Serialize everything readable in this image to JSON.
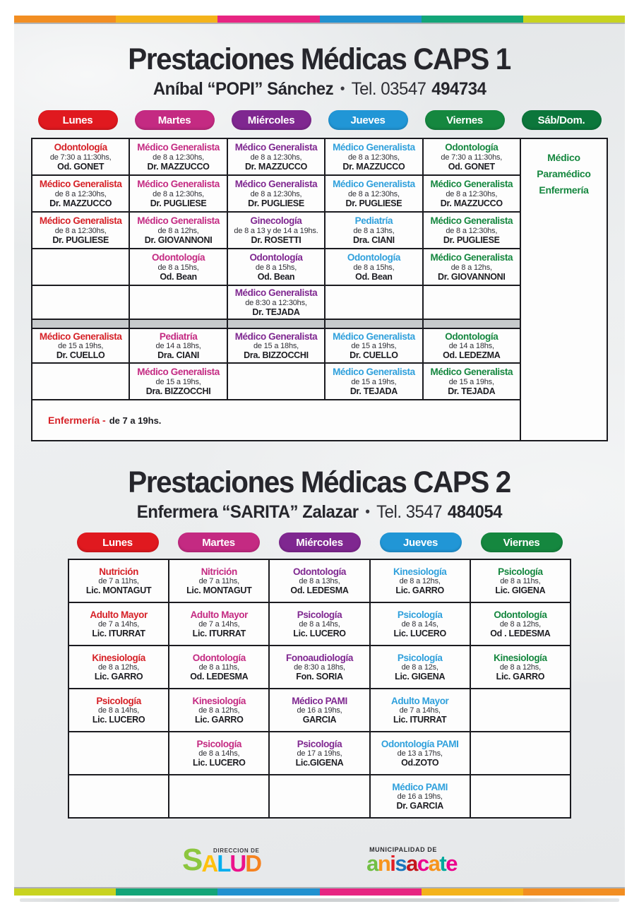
{
  "strips": {
    "top_colors": [
      "#F28E22",
      "#F4B31B",
      "#E72582",
      "#2191D0",
      "#13A578",
      "#C8D320"
    ],
    "bottom_colors": [
      "#C8D320",
      "#13A578",
      "#2191D0",
      "#E72582",
      "#F4B31B",
      "#F28E22"
    ]
  },
  "caps1": {
    "title": "Prestaciones Médicas CAPS 1",
    "subtitle": {
      "name": "Aníbal “POPI” Sánchez",
      "bullet": "•",
      "tel_normal": "Tel. 03547",
      "tel_bold": "494734"
    },
    "days": [
      {
        "label": "Lunes",
        "color": "#E0191F"
      },
      {
        "label": "Martes",
        "color": "#C42A82"
      },
      {
        "label": "Miércoles",
        "color": "#7F2790"
      },
      {
        "label": "Jueves",
        "color": "#2196D6"
      },
      {
        "label": "Viernes",
        "color": "#15873F"
      },
      {
        "label": "Sáb/Dom.",
        "color": "#0C763B"
      }
    ],
    "column_colors": [
      "#D62127",
      "#C42A82",
      "#7F2790",
      "#2FA0DC",
      "#15873F"
    ],
    "morning_rows": [
      [
        {
          "specialty": "Odontología",
          "time": "de 7:30 a 11:30hs,",
          "doctor": "Od. GONET"
        },
        {
          "specialty": "Médico Generalista",
          "time": "de 8 a 12:30hs,",
          "doctor": "Dr. MAZZUCCO"
        },
        {
          "specialty": "Médico Generalista",
          "time": "de 8 a 12:30hs,",
          "doctor": "Dr. MAZZUCCO"
        },
        {
          "specialty": "Médico Generalista",
          "time": "de 8 a 12:30hs,",
          "doctor": "Dr. MAZZUCCO"
        },
        {
          "specialty": "Odontología",
          "time": "de 7:30 a 11:30hs,",
          "doctor": "Od. GONET"
        }
      ],
      [
        {
          "specialty": "Médico Generalista",
          "time": "de 8 a 12:30hs,",
          "doctor": "Dr. MAZZUCCO"
        },
        {
          "specialty": "Médico Generalista",
          "time": "de 8 a 12:30hs,",
          "doctor": "Dr. PUGLIESE"
        },
        {
          "specialty": "Médico Generalista",
          "time": "de 8 a 12:30hs,",
          "doctor": "Dr. PUGLIESE"
        },
        {
          "specialty": "Médico Generalista",
          "time": "de 8 a 12:30hs,",
          "doctor": "Dr. PUGLIESE"
        },
        {
          "specialty": "Médico Generalista",
          "time": "de 8 a 12:30hs,",
          "doctor": "Dr. MAZZUCCO"
        }
      ],
      [
        {
          "specialty": "Médico Generalista",
          "time": "de 8 a 12:30hs,",
          "doctor": "Dr. PUGLIESE"
        },
        {
          "specialty": "Médico Generalista",
          "time": "de 8 a 12hs,",
          "doctor": "Dr. GIOVANNONI"
        },
        {
          "specialty": "Ginecología",
          "time": "de 8 a 13 y de 14 a 19hs.",
          "doctor": "Dr. ROSETTI"
        },
        {
          "specialty": "Pediatría",
          "time": "de 8 a 13hs,",
          "doctor": "Dra. CIANI"
        },
        {
          "specialty": "Médico Generalista",
          "time": "de 8 a 12:30hs,",
          "doctor": "Dr. PUGLIESE"
        }
      ],
      [
        null,
        {
          "specialty": "Odontología",
          "time": "de 8 a 15hs,",
          "doctor": "Od. Bean"
        },
        {
          "specialty": "Odontología",
          "time": "de 8 a 15hs,",
          "doctor": "Od. Bean"
        },
        {
          "specialty": "Odontología",
          "time": "de 8 a 15hs,",
          "doctor": "Od. Bean"
        },
        {
          "specialty": "Médico Generalista",
          "time": "de 8 a 12hs,",
          "doctor": "Dr. GIOVANNONI"
        }
      ],
      [
        null,
        null,
        {
          "specialty": "Médico Generalista",
          "time": "de 8:30 a 12:30hs,",
          "doctor": "Dr. TEJADA"
        },
        null,
        null
      ]
    ],
    "afternoon_rows": [
      [
        {
          "specialty": "Médico Generalista",
          "time": "de 15 a 19hs,",
          "doctor": "Dr. CUELLO"
        },
        {
          "specialty": "Pediatría",
          "time": "de 14 a 18hs,",
          "doctor": "Dra. CIANI"
        },
        {
          "specialty": "Médico Generalista",
          "time": "de 15 a 18hs,",
          "doctor": "Dra. BIZZOCCHI"
        },
        {
          "specialty": "Médico Generalista",
          "time": "de 15 a 19hs,",
          "doctor": "Dr. CUELLO"
        },
        {
          "specialty": "Odontología",
          "time": "de 14 a 18hs,",
          "doctor": "Od. LEDEZMA"
        }
      ],
      [
        null,
        {
          "specialty": "Médico Generalista",
          "time": "de 15 a 19hs,",
          "doctor": "Dra. BIZZOCCHI"
        },
        null,
        {
          "specialty": "Médico Generalista",
          "time": "de 15 a 19hs,",
          "doctor": "Dr. TEJADA"
        },
        {
          "specialty": "Médico Generalista",
          "time": "de 15 a 19hs,",
          "doctor": "Dr. TEJADA"
        }
      ]
    ],
    "weekend_lines": [
      "Médico",
      "Paramédico",
      "Enfermería"
    ],
    "weekend_color": "#15873F",
    "footer_label": "Enfermería -",
    "footer_label_color": "#D62127",
    "footer_text": "de 7 a 19hs."
  },
  "caps2": {
    "title": "Prestaciones Médicas CAPS 2",
    "subtitle": {
      "name": "Enfermera “SARITA” Zalazar",
      "bullet": "•",
      "tel_normal": "Tel. 3547",
      "tel_bold": "484054"
    },
    "days": [
      {
        "label": "Lunes",
        "color": "#E0191F"
      },
      {
        "label": "Martes",
        "color": "#C42A82"
      },
      {
        "label": "Miércoles",
        "color": "#7F2790"
      },
      {
        "label": "Jueves",
        "color": "#2196D6"
      },
      {
        "label": "Viernes",
        "color": "#15873F"
      }
    ],
    "column_colors": [
      "#D62127",
      "#C42A82",
      "#7F2790",
      "#2FA0DC",
      "#15873F"
    ],
    "rows": [
      [
        {
          "specialty": "Nutrición",
          "time": "de 7 a 11hs,",
          "doctor": "Lic. MONTAGUT"
        },
        {
          "specialty": "Nitrición",
          "time": "de 7 a 11hs,",
          "doctor": "Lic. MONTAGUT"
        },
        {
          "specialty": "Odontología",
          "time": "de 8 a 13hs,",
          "doctor": "Od. LEDESMA"
        },
        {
          "specialty": "Kinesiología",
          "time": "de 8 a 12hs,",
          "doctor": "Lic. GARRO"
        },
        {
          "specialty": "Psicología",
          "time": "de 8 a 11hs,",
          "doctor": "Lic. GIGENA"
        }
      ],
      [
        {
          "specialty": "Adulto Mayor",
          "time": "de 7 a 14hs,",
          "doctor": "Lic. ITURRAT"
        },
        {
          "specialty": "Adulto Mayor",
          "time": "de 7 a 14hs,",
          "doctor": "Lic. ITURRAT"
        },
        {
          "specialty": "Psicología",
          "time": "de 8 a 14hs,",
          "doctor": "Lic. LUCERO"
        },
        {
          "specialty": "Psicología",
          "time": "de 8 a 14s,",
          "doctor": "Lic. LUCERO"
        },
        {
          "specialty": "Odontología",
          "time": "de 8 a 12hs,",
          "doctor": "Od . LEDESMA"
        }
      ],
      [
        {
          "specialty": "Kinesiología",
          "time": "de 8 a 12hs,",
          "doctor": "Lic. GARRO"
        },
        {
          "specialty": "Odontología",
          "time": "de 8 a 11hs,",
          "doctor": "Od. LEDESMA"
        },
        {
          "specialty": "Fonoaudiología",
          "time": "de 8:30 a 18hs,",
          "doctor": "Fon. SORIA"
        },
        {
          "specialty": "Psicología",
          "time": "de 8 a 12s,",
          "doctor": "Lic. GIGENA"
        },
        {
          "specialty": "Kinesiología",
          "time": "de 8 a 12hs,",
          "doctor": "Lic. GARRO"
        }
      ],
      [
        {
          "specialty": "Psicología",
          "time": "de 8 a 14hs,",
          "doctor": "Lic. LUCERO"
        },
        {
          "specialty": "Kinesiología",
          "time": "de 8 a 12hs,",
          "doctor": "Lic. GARRO"
        },
        {
          "specialty": "Médico PAMI",
          "time": "de 16 a 19hs,",
          "doctor": "GARCIA"
        },
        {
          "specialty": "Adulto Mayor",
          "time": "de 7 a 14hs,",
          "doctor": "Lic. ITURRAT"
        },
        null
      ],
      [
        null,
        {
          "specialty": "Psicología",
          "time": "de 8 a 14hs,",
          "doctor": "Lic. LUCERO"
        },
        {
          "specialty": "Psicología",
          "time": "de 17 a 19hs,",
          "doctor": "Lic.GIGENA"
        },
        {
          "specialty": "Odontología PAMI",
          "time": "de 13 a 17hs,",
          "doctor": "Od.ZOTO"
        },
        null
      ],
      [
        null,
        null,
        null,
        {
          "specialty": "Médico PAMI",
          "time": "de 16 a 19hs,",
          "doctor": "Dr. GARCIA"
        },
        null
      ]
    ]
  },
  "logos": {
    "salud": {
      "label": "DIRECCION DE",
      "letters": [
        {
          "ch": "S",
          "color": "#8CC63E"
        },
        {
          "ch": "A",
          "color": "#FFC10E"
        },
        {
          "ch": "L",
          "color": "#00AEEF"
        },
        {
          "ch": "U",
          "color": "#EC128C"
        },
        {
          "ch": "D",
          "color": "#F58220"
        }
      ]
    },
    "anisacate": {
      "label": "MUNICIPALIDAD DE",
      "letters": [
        {
          "ch": "a",
          "color": "#72BF44"
        },
        {
          "ch": "n",
          "color": "#F7941D"
        },
        {
          "ch": "i",
          "color": "#E21F26"
        },
        {
          "ch": "s",
          "color": "#1B75BC"
        },
        {
          "ch": "a",
          "color": "#C4161C"
        },
        {
          "ch": "c",
          "color": "#EC008C"
        },
        {
          "ch": "a",
          "color": "#F7941D"
        },
        {
          "ch": "t",
          "color": "#00A99D"
        },
        {
          "ch": "e",
          "color": "#EC008C"
        }
      ]
    }
  }
}
